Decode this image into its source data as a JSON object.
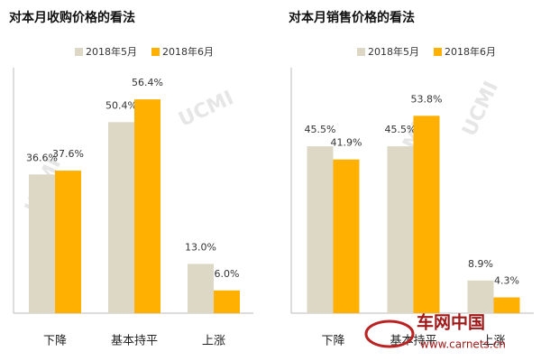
{
  "chart_data": [
    {
      "type": "bar",
      "title": "对本月收购价格的看法",
      "categories": [
        "下降",
        "基本持平",
        "上涨"
      ],
      "series": [
        {
          "name": "2018年5月",
          "color": "#ddd8c6",
          "values": [
            36.6,
            50.4,
            13.0
          ],
          "value_labels": [
            "36.6%",
            "50.4%",
            "13.0%"
          ]
        },
        {
          "name": "2018年6月",
          "color": "#ffb000",
          "values": [
            37.6,
            56.4,
            6.0
          ],
          "value_labels": [
            "37.6%",
            "56.4%",
            "6.0%"
          ]
        }
      ],
      "ylim": [
        0,
        60
      ]
    },
    {
      "type": "bar",
      "title": "对本月销售价格的看法",
      "categories": [
        "下降",
        "基本持平",
        "上涨"
      ],
      "series": [
        {
          "name": "2018年5月",
          "color": "#ddd8c6",
          "values": [
            45.5,
            45.5,
            8.9
          ],
          "value_labels": [
            "45.5%",
            "45.5%",
            "8.9%"
          ]
        },
        {
          "name": "2018年6月",
          "color": "#ffb000",
          "values": [
            41.9,
            53.8,
            4.3
          ],
          "value_labels": [
            "41.9%",
            "53.8%",
            "4.3%"
          ]
        }
      ],
      "ylim": [
        0,
        62
      ]
    }
  ],
  "watermark": "UCMI",
  "logo": {
    "name": "车网中国",
    "url": "www.carnets.cn"
  }
}
